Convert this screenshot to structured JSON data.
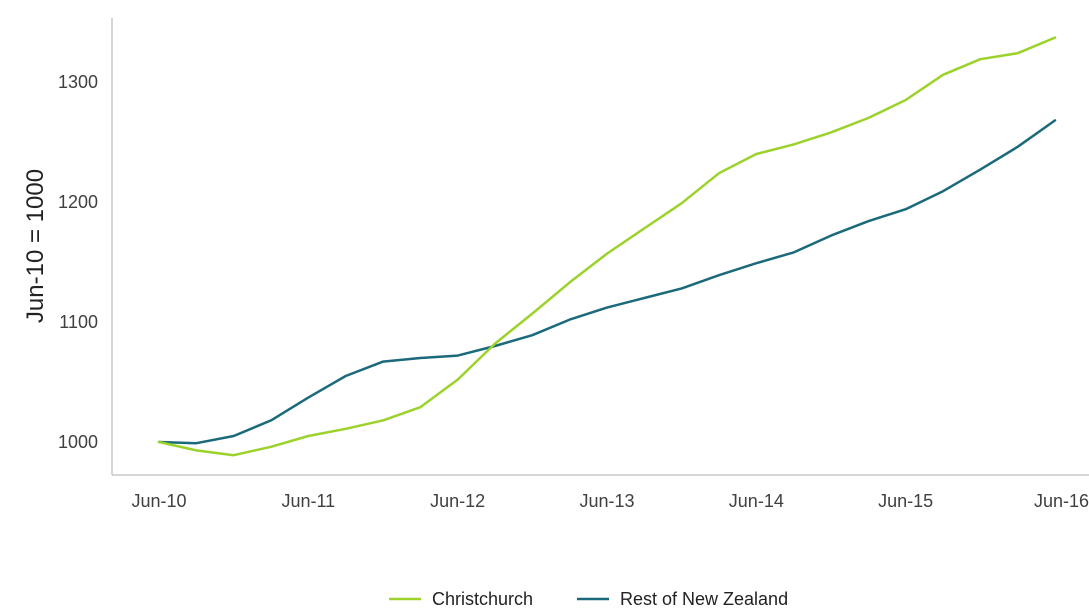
{
  "chart_data": {
    "type": "line",
    "title": "",
    "xlabel": "",
    "ylabel": "Jun-10 = 1000",
    "x_ticks": [
      "Jun-10",
      "Jun-11",
      "Jun-12",
      "Jun-13",
      "Jun-14",
      "Jun-15",
      "Jun-16"
    ],
    "ylim": [
      975,
      1350
    ],
    "y_ticks": [
      1000,
      1100,
      1200,
      1300
    ],
    "grid": false,
    "legend_position": "bottom-center",
    "x": [
      "Jun-10",
      "Sep-10",
      "Dec-10",
      "Mar-11",
      "Jun-11",
      "Sep-11",
      "Dec-11",
      "Mar-12",
      "Jun-12",
      "Sep-12",
      "Dec-12",
      "Mar-13",
      "Jun-13",
      "Sep-13",
      "Dec-13",
      "Mar-14",
      "Jun-14",
      "Sep-14",
      "Dec-14",
      "Mar-15",
      "Jun-15",
      "Sep-15",
      "Dec-15",
      "Mar-16",
      "Jun-16"
    ],
    "series": [
      {
        "name": "Christchurch",
        "color": "#9bd22b",
        "values": [
          1000,
          993,
          989,
          996,
          1005,
          1011,
          1018,
          1029,
          1052,
          1082,
          1107,
          1133,
          1157,
          1178,
          1199,
          1224,
          1240,
          1248,
          1258,
          1270,
          1285,
          1306,
          1319,
          1324,
          1337
        ]
      },
      {
        "name": "Rest of New Zealand",
        "color": "#1b6a7b",
        "values": [
          1000,
          999,
          1005,
          1018,
          1037,
          1055,
          1067,
          1070,
          1072,
          1080,
          1089,
          1102,
          1112,
          1120,
          1128,
          1139,
          1149,
          1158,
          1172,
          1184,
          1194,
          1209,
          1227,
          1246,
          1268
        ]
      }
    ]
  }
}
